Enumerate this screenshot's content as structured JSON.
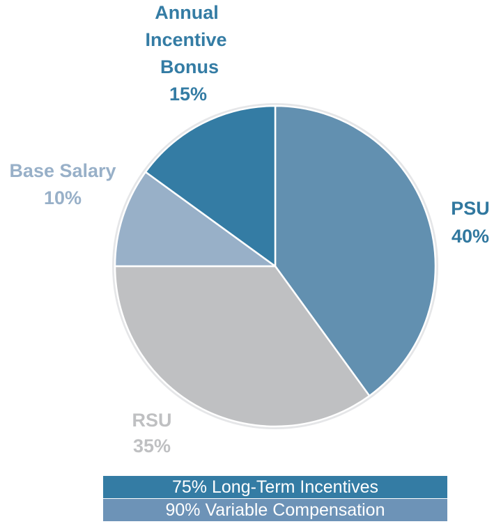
{
  "chart_data": {
    "type": "pie",
    "title": "",
    "start_angle": "12 o'clock",
    "direction": "clockwise",
    "slices": [
      {
        "label": "PSU",
        "value": 40,
        "value_label": "40%",
        "color": "#6290b0",
        "label_color": "#31789f"
      },
      {
        "label": "RSU",
        "value": 35,
        "value_label": "35%",
        "color": "#bfc0c2",
        "label_color": "#bfc0c2"
      },
      {
        "label": "Base Salary",
        "value": 10,
        "value_label": "10%",
        "color": "#98b0c8",
        "label_color": "#98b0c8"
      },
      {
        "label": "Annual Incentive Bonus",
        "value": 15,
        "value_label": "15%",
        "color": "#347ca4",
        "label_color": "#347ca4"
      }
    ],
    "slice_border_color": "#ffffff",
    "outer_ring_color": "#e5e6e8"
  },
  "banners": [
    {
      "text": "75% Long-Term Incentives",
      "color": "#347ca4"
    },
    {
      "text": "90% Variable Compensation",
      "color": "#6d93b7"
    }
  ]
}
